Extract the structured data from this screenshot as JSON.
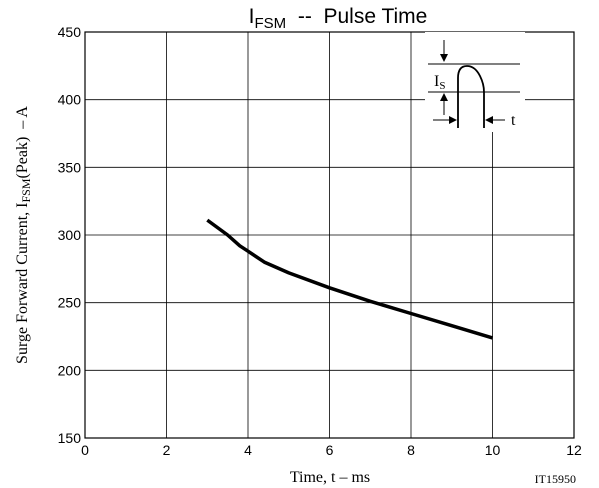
{
  "chart_data": {
    "type": "line",
    "title": {
      "prefix": "I",
      "subscript": "FSM",
      "suffix": "  --  Pulse Time"
    },
    "xlabel": "Time, t  – ms",
    "ylabel": {
      "prefix": "Surge Forward Current, I",
      "subscript": "FSM",
      "suffix": "(Peak)  – A"
    },
    "xlim": [
      0,
      12
    ],
    "ylim": [
      150,
      450
    ],
    "x_ticks": [
      0,
      2,
      4,
      6,
      8,
      10,
      12
    ],
    "y_ticks": [
      150,
      200,
      250,
      300,
      350,
      400,
      450
    ],
    "grid": true,
    "series": [
      {
        "x": [
          3.0,
          3.5,
          3.8,
          4.0,
          4.4,
          5.0,
          6.0,
          7.0,
          8.0,
          9.0,
          10.0
        ],
        "y": [
          311,
          300,
          292,
          288,
          280,
          272,
          261,
          251,
          242,
          233,
          224
        ]
      }
    ],
    "inset": {
      "label": {
        "prefix": "I",
        "subscript": "S"
      },
      "time_label": "t"
    },
    "figure_id": "IT15950"
  },
  "colors": {
    "line": "#000000",
    "grid": "#000000",
    "background": "#ffffff"
  }
}
